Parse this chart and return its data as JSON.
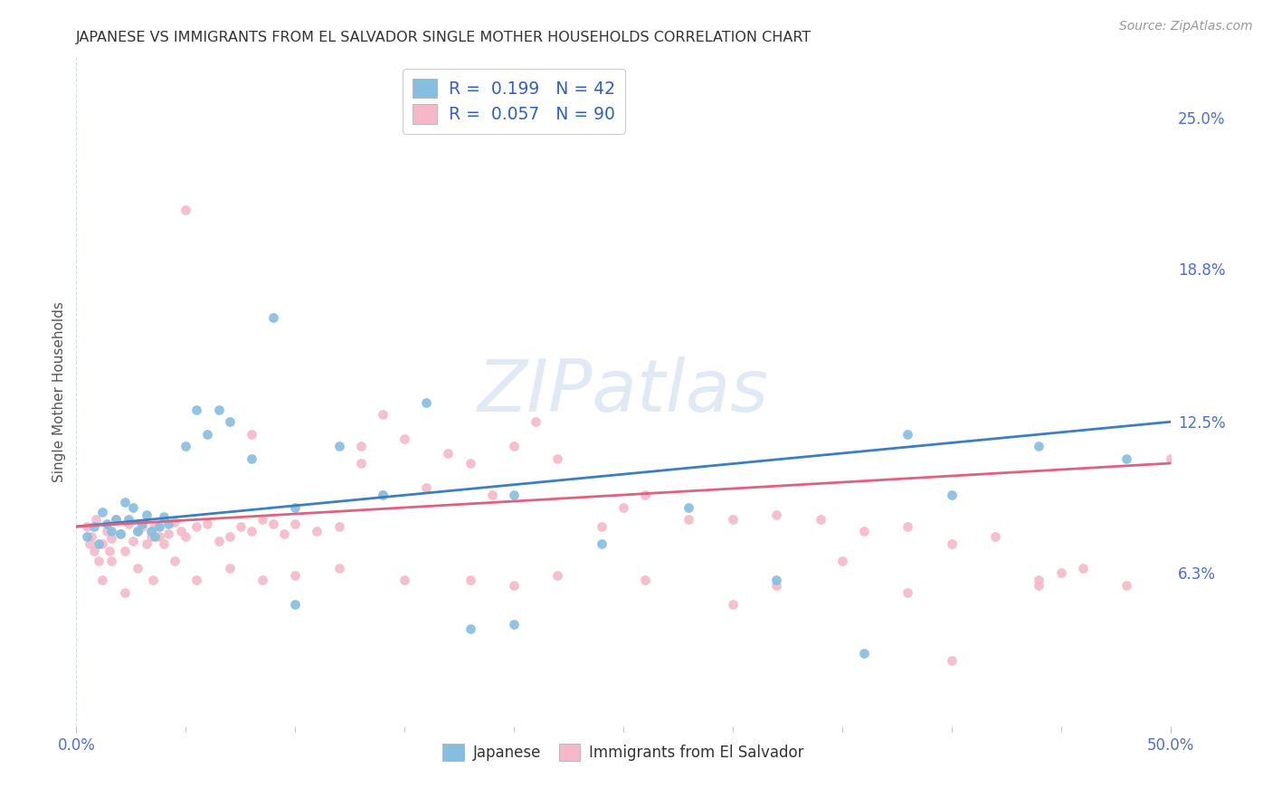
{
  "title": "JAPANESE VS IMMIGRANTS FROM EL SALVADOR SINGLE MOTHER HOUSEHOLDS CORRELATION CHART",
  "source": "Source: ZipAtlas.com",
  "ylabel": "Single Mother Households",
  "ytick_labels": [
    "6.3%",
    "12.5%",
    "18.8%",
    "25.0%"
  ],
  "ytick_values": [
    0.063,
    0.125,
    0.188,
    0.25
  ],
  "xmin": 0.0,
  "xmax": 0.5,
  "ymin": 0.0,
  "ymax": 0.275,
  "legend_japanese_R": "0.199",
  "legend_japanese_N": "42",
  "legend_salvador_R": "0.057",
  "legend_salvador_N": "90",
  "color_japanese": "#85bedf",
  "color_salvador": "#f4b8c8",
  "color_line_japanese": "#3a7fc1",
  "color_line_salvador": "#e0607e",
  "color_tick_labels": "#4f6fc9",
  "watermark_text": "ZIPatlas",
  "japanese_x": [
    0.005,
    0.008,
    0.01,
    0.012,
    0.014,
    0.016,
    0.018,
    0.02,
    0.022,
    0.024,
    0.026,
    0.028,
    0.03,
    0.032,
    0.034,
    0.036,
    0.038,
    0.04,
    0.042,
    0.05,
    0.055,
    0.06,
    0.065,
    0.07,
    0.08,
    0.09,
    0.1,
    0.12,
    0.14,
    0.16,
    0.18,
    0.2,
    0.24,
    0.28,
    0.32,
    0.36,
    0.38,
    0.4,
    0.44,
    0.48,
    0.1,
    0.2
  ],
  "japanese_y": [
    0.078,
    0.082,
    0.075,
    0.088,
    0.083,
    0.08,
    0.085,
    0.079,
    0.092,
    0.085,
    0.09,
    0.08,
    0.083,
    0.087,
    0.08,
    0.078,
    0.082,
    0.086,
    0.083,
    0.115,
    0.13,
    0.12,
    0.13,
    0.125,
    0.11,
    0.168,
    0.09,
    0.115,
    0.095,
    0.133,
    0.04,
    0.095,
    0.075,
    0.09,
    0.06,
    0.03,
    0.12,
    0.095,
    0.115,
    0.11,
    0.05,
    0.042
  ],
  "salvador_x": [
    0.005,
    0.007,
    0.009,
    0.01,
    0.012,
    0.014,
    0.015,
    0.016,
    0.018,
    0.02,
    0.022,
    0.024,
    0.026,
    0.028,
    0.03,
    0.032,
    0.034,
    0.036,
    0.038,
    0.04,
    0.042,
    0.045,
    0.048,
    0.05,
    0.055,
    0.06,
    0.065,
    0.07,
    0.075,
    0.08,
    0.085,
    0.09,
    0.095,
    0.1,
    0.11,
    0.12,
    0.13,
    0.14,
    0.15,
    0.16,
    0.17,
    0.18,
    0.19,
    0.2,
    0.21,
    0.22,
    0.24,
    0.26,
    0.28,
    0.3,
    0.32,
    0.34,
    0.36,
    0.38,
    0.4,
    0.42,
    0.44,
    0.46,
    0.48,
    0.5,
    0.006,
    0.008,
    0.012,
    0.016,
    0.022,
    0.028,
    0.035,
    0.045,
    0.055,
    0.07,
    0.085,
    0.1,
    0.12,
    0.15,
    0.18,
    0.22,
    0.26,
    0.32,
    0.38,
    0.44,
    0.05,
    0.08,
    0.13,
    0.2,
    0.3,
    0.4,
    0.14,
    0.25,
    0.35,
    0.45
  ],
  "salvador_y": [
    0.082,
    0.078,
    0.085,
    0.068,
    0.075,
    0.08,
    0.072,
    0.077,
    0.085,
    0.079,
    0.072,
    0.083,
    0.076,
    0.08,
    0.082,
    0.075,
    0.078,
    0.082,
    0.078,
    0.075,
    0.079,
    0.084,
    0.08,
    0.078,
    0.082,
    0.083,
    0.076,
    0.078,
    0.082,
    0.08,
    0.085,
    0.083,
    0.079,
    0.083,
    0.08,
    0.082,
    0.115,
    0.128,
    0.118,
    0.098,
    0.112,
    0.108,
    0.095,
    0.115,
    0.125,
    0.11,
    0.082,
    0.095,
    0.085,
    0.085,
    0.087,
    0.085,
    0.08,
    0.082,
    0.075,
    0.078,
    0.06,
    0.065,
    0.058,
    0.11,
    0.075,
    0.072,
    0.06,
    0.068,
    0.055,
    0.065,
    0.06,
    0.068,
    0.06,
    0.065,
    0.06,
    0.062,
    0.065,
    0.06,
    0.06,
    0.062,
    0.06,
    0.058,
    0.055,
    0.058,
    0.212,
    0.12,
    0.108,
    0.058,
    0.05,
    0.027,
    0.095,
    0.09,
    0.068,
    0.063
  ]
}
